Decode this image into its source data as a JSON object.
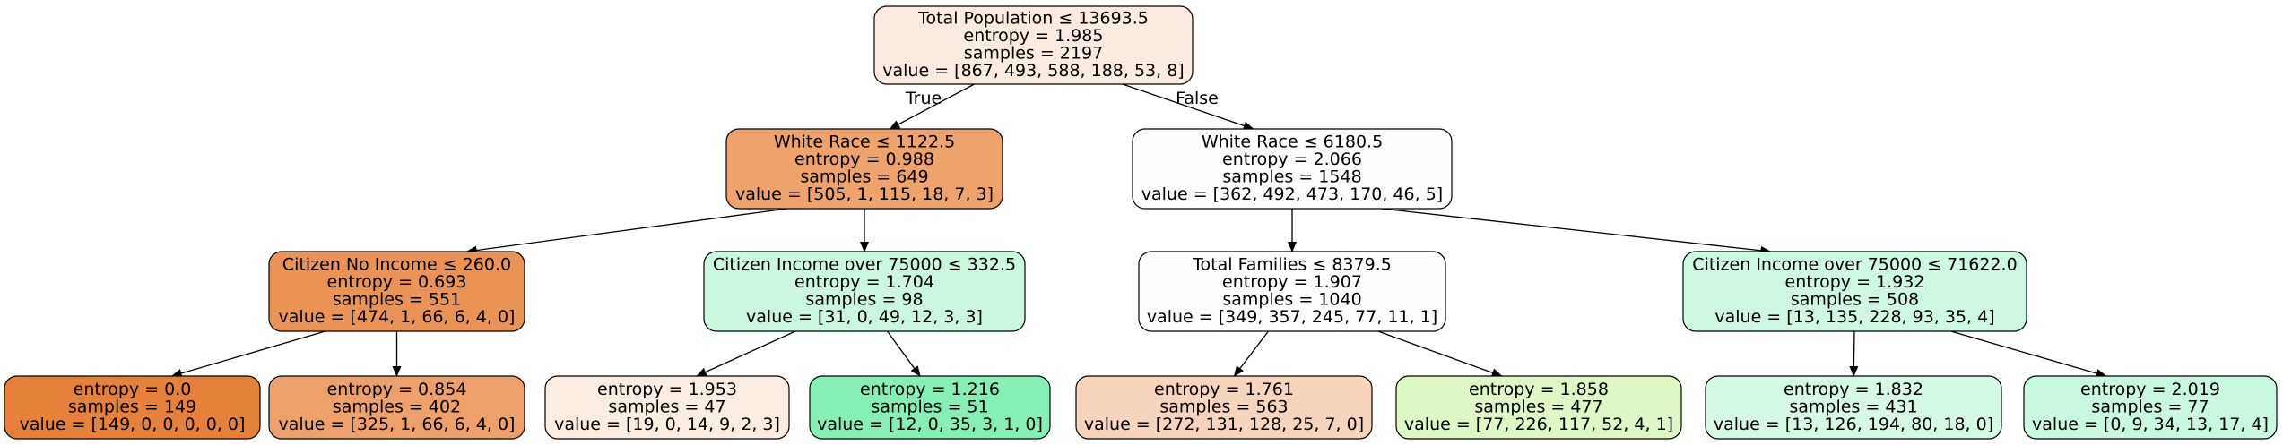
{
  "tree": {
    "nodes": [
      {
        "id": "n0",
        "color": "#fbeadf",
        "lines": [
          "Total Population ≤ 13693.5",
          "entropy = 1.985",
          "samples = 2197",
          "value = [867, 493, 588, 188, 53, 8]"
        ]
      },
      {
        "id": "n1",
        "color": "#eea36c",
        "lines": [
          "White Race ≤ 1122.5",
          "entropy = 0.988",
          "samples = 649",
          "value = [505, 1, 115, 18, 7, 3]"
        ]
      },
      {
        "id": "n2",
        "color": "#fdfffc",
        "lines": [
          "White Race ≤ 6180.5",
          "entropy = 2.066",
          "samples = 1548",
          "value = [362, 492, 473, 170, 46, 5]"
        ]
      },
      {
        "id": "n3",
        "color": "#e99355",
        "lines": [
          "Citizen No Income ≤ 260.0",
          "entropy = 0.693",
          "samples = 551",
          "value = [474, 1, 66, 6, 4, 0]"
        ]
      },
      {
        "id": "n4",
        "color": "#c9f8df",
        "lines": [
          "Citizen Income over 75000 ≤ 332.5",
          "entropy = 1.704",
          "samples = 98",
          "value = [31, 0, 49, 12, 3, 3]"
        ]
      },
      {
        "id": "n5",
        "color": "#fffefe",
        "lines": [
          "Total Families ≤ 8379.5",
          "entropy = 1.907",
          "samples = 1040",
          "value = [349, 357, 245, 77, 11, 1]"
        ]
      },
      {
        "id": "n6",
        "color": "#cdf8e2",
        "lines": [
          "Citizen Income over 75000 ≤ 71622.0",
          "entropy = 1.932",
          "samples = 508",
          "value = [13, 135, 228, 93, 35, 4]"
        ]
      },
      {
        "id": "n7",
        "color": "#e58139",
        "lines": [
          "entropy = 0.0",
          "samples = 149",
          "value = [149, 0, 0, 0, 0, 0]"
        ]
      },
      {
        "id": "n8",
        "color": "#eda06a",
        "lines": [
          "entropy = 0.854",
          "samples = 402",
          "value = [325, 1, 66, 6, 4, 0]"
        ]
      },
      {
        "id": "n9",
        "color": "#fbece2",
        "lines": [
          "entropy = 1.953",
          "samples = 47",
          "value = [19, 0, 14, 9, 2, 3]"
        ]
      },
      {
        "id": "n10",
        "color": "#86efb6",
        "lines": [
          "entropy = 1.216",
          "samples = 51",
          "value = [12, 0, 35, 3, 1, 0]"
        ]
      },
      {
        "id": "n11",
        "color": "#f7d5bd",
        "lines": [
          "entropy = 1.761",
          "samples = 563",
          "value = [272, 131, 128, 25, 7, 0]"
        ]
      },
      {
        "id": "n12",
        "color": "#dff7c5",
        "lines": [
          "entropy = 1.858",
          "samples = 477",
          "value = [77, 226, 117, 52, 4, 1]"
        ]
      },
      {
        "id": "n13",
        "color": "#d5f9e5",
        "lines": [
          "entropy = 1.832",
          "samples = 431",
          "value = [13, 126, 194, 80, 18, 0]"
        ]
      },
      {
        "id": "n14",
        "color": "#c8f8df",
        "lines": [
          "entropy = 2.019",
          "samples = 77",
          "value = [0, 9, 34, 13, 17, 4]"
        ]
      }
    ],
    "edges": [
      {
        "from": "n0",
        "to": "n1",
        "label": "True"
      },
      {
        "from": "n0",
        "to": "n2",
        "label": "False"
      },
      {
        "from": "n1",
        "to": "n3",
        "label": ""
      },
      {
        "from": "n1",
        "to": "n4",
        "label": ""
      },
      {
        "from": "n2",
        "to": "n5",
        "label": ""
      },
      {
        "from": "n2",
        "to": "n6",
        "label": ""
      },
      {
        "from": "n3",
        "to": "n7",
        "label": ""
      },
      {
        "from": "n3",
        "to": "n8",
        "label": ""
      },
      {
        "from": "n4",
        "to": "n9",
        "label": ""
      },
      {
        "from": "n4",
        "to": "n10",
        "label": ""
      },
      {
        "from": "n5",
        "to": "n11",
        "label": ""
      },
      {
        "from": "n5",
        "to": "n12",
        "label": ""
      },
      {
        "from": "n6",
        "to": "n13",
        "label": ""
      },
      {
        "from": "n6",
        "to": "n14",
        "label": ""
      }
    ]
  }
}
